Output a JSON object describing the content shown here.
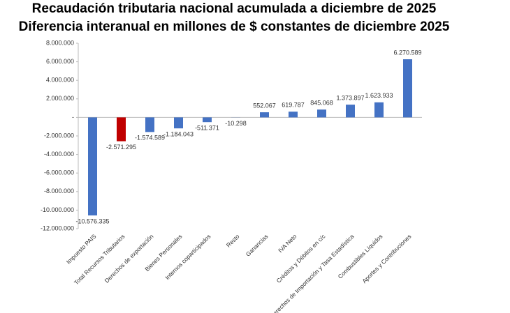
{
  "chart_data": {
    "type": "bar",
    "title": "Recaudación tributaria nacional acumulada a diciembre de 2025",
    "subtitle": "Diferencia interanual en millones de $ constantes de diciembre 2025",
    "categories": [
      "Impuesto PAIS",
      "Total Recursos Tributarios",
      "Derechos de exportación",
      "Bienes Personales",
      "Internos coparticipados",
      "Resto",
      "Ganancias",
      "IVA Neto",
      "Créditos y Débitos en c/c",
      "Derechos de Importación y Tasa Estadística",
      "Combustibles Líquidos",
      "Aportes y Contribuciones"
    ],
    "values": [
      -10576335,
      -2571295,
      -1574589,
      -1184043,
      -511371,
      -10298,
      552067,
      619787,
      845068,
      1373897,
      1623933,
      6270589
    ],
    "value_labels": [
      "-10.576.335",
      "-2.571.295",
      "-1.574.589",
      "-1.184.043",
      "-511.371",
      "-10.298",
      "552.067",
      "619.787",
      "845.068",
      "1.373.897",
      "1.623.933",
      "6.270.589"
    ],
    "colors": [
      "#4472c4",
      "#c00000",
      "#4472c4",
      "#4472c4",
      "#4472c4",
      "#4472c4",
      "#4472c4",
      "#4472c4",
      "#4472c4",
      "#4472c4",
      "#4472c4",
      "#4472c4"
    ],
    "ylim": [
      -12000000,
      8000000
    ],
    "yticks": [
      {
        "value": -12000000,
        "label": "-12.000.000"
      },
      {
        "value": -10000000,
        "label": "-10.000.000"
      },
      {
        "value": -8000000,
        "label": "-8.000.000"
      },
      {
        "value": -6000000,
        "label": "-6.000.000"
      },
      {
        "value": -4000000,
        "label": "-4.000.000"
      },
      {
        "value": -2000000,
        "label": "-2.000.000"
      },
      {
        "value": 0,
        "label": "-"
      },
      {
        "value": 2000000,
        "label": "2.000.000"
      },
      {
        "value": 4000000,
        "label": "4.000.000"
      },
      {
        "value": 6000000,
        "label": "6.000.000"
      },
      {
        "value": 8000000,
        "label": "8.000.000"
      }
    ],
    "grid": false
  }
}
